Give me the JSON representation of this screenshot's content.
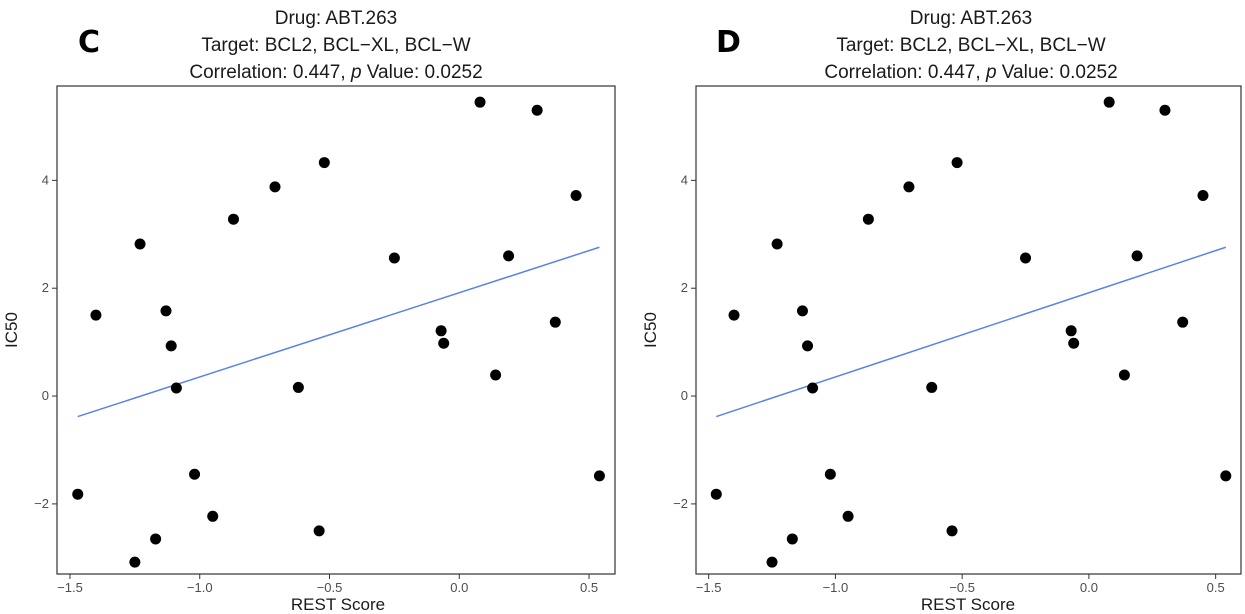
{
  "chart_data": [
    {
      "type": "scatter",
      "panel_label": "C",
      "title_lines": [
        "Drug: ABT.263",
        "Target: BCL2, BCL−XL, BCL−W"
      ],
      "correlation_line": {
        "prefix": "Correlation: 0.447, ",
        "p_symbol": "p",
        "suffix": " Value: 0.0252"
      },
      "xlabel": "REST Score",
      "ylabel": "IC50",
      "xlim": [
        -1.55,
        0.6
      ],
      "ylim": [
        -3.3,
        5.75
      ],
      "xticks": [
        -1.5,
        -1.0,
        -0.5,
        0.0,
        0.5
      ],
      "xtick_labels": [
        "−1.5",
        "−1.0",
        "−0.5",
        "0.0",
        "0.5"
      ],
      "yticks": [
        -2,
        0,
        2,
        4
      ],
      "ytick_labels": [
        "−2",
        "0",
        "2",
        "4"
      ],
      "points": [
        {
          "x": -1.47,
          "y": -1.82
        },
        {
          "x": -1.4,
          "y": 1.5
        },
        {
          "x": -1.25,
          "y": -3.08
        },
        {
          "x": -1.23,
          "y": 2.82
        },
        {
          "x": -1.17,
          "y": -2.65
        },
        {
          "x": -1.13,
          "y": 1.58
        },
        {
          "x": -1.11,
          "y": 0.93
        },
        {
          "x": -1.09,
          "y": 0.15
        },
        {
          "x": -1.02,
          "y": -1.45
        },
        {
          "x": -0.95,
          "y": -2.23
        },
        {
          "x": -0.87,
          "y": 3.28
        },
        {
          "x": -0.71,
          "y": 3.88
        },
        {
          "x": -0.62,
          "y": 0.16
        },
        {
          "x": -0.54,
          "y": -2.5
        },
        {
          "x": -0.52,
          "y": 4.33
        },
        {
          "x": -0.25,
          "y": 2.56
        },
        {
          "x": -0.07,
          "y": 1.21
        },
        {
          "x": -0.06,
          "y": 0.98
        },
        {
          "x": 0.08,
          "y": 5.45
        },
        {
          "x": 0.14,
          "y": 0.39
        },
        {
          "x": 0.19,
          "y": 2.6
        },
        {
          "x": 0.3,
          "y": 5.3
        },
        {
          "x": 0.37,
          "y": 1.37
        },
        {
          "x": 0.45,
          "y": 3.72
        },
        {
          "x": 0.54,
          "y": -1.48
        }
      ],
      "fit_line": {
        "x": [
          -1.47,
          0.54
        ],
        "y": [
          -0.38,
          2.76
        ]
      },
      "colors": {
        "points": "#000000",
        "fit_line": "#5b82e8",
        "frame": "#333333"
      }
    },
    {
      "type": "scatter",
      "panel_label": "D",
      "title_lines": [
        "Drug: ABT.263",
        "Target: BCL2, BCL−XL, BCL−W"
      ],
      "correlation_line": {
        "prefix": "Correlation: 0.447, ",
        "p_symbol": "p",
        "suffix": " Value: 0.0252"
      },
      "xlabel": "REST Score",
      "ylabel": "IC50",
      "xlim": [
        -1.55,
        0.6
      ],
      "ylim": [
        -3.3,
        5.75
      ],
      "xticks": [
        -1.5,
        -1.0,
        -0.5,
        0.0,
        0.5
      ],
      "xtick_labels": [
        "−1.5",
        "−1.0",
        "−0.5",
        "0.0",
        "0.5"
      ],
      "yticks": [
        -2,
        0,
        2,
        4
      ],
      "ytick_labels": [
        "−2",
        "0",
        "2",
        "4"
      ],
      "points": [
        {
          "x": -1.47,
          "y": -1.82
        },
        {
          "x": -1.4,
          "y": 1.5
        },
        {
          "x": -1.25,
          "y": -3.08
        },
        {
          "x": -1.23,
          "y": 2.82
        },
        {
          "x": -1.17,
          "y": -2.65
        },
        {
          "x": -1.13,
          "y": 1.58
        },
        {
          "x": -1.11,
          "y": 0.93
        },
        {
          "x": -1.09,
          "y": 0.15
        },
        {
          "x": -1.02,
          "y": -1.45
        },
        {
          "x": -0.95,
          "y": -2.23
        },
        {
          "x": -0.87,
          "y": 3.28
        },
        {
          "x": -0.71,
          "y": 3.88
        },
        {
          "x": -0.62,
          "y": 0.16
        },
        {
          "x": -0.54,
          "y": -2.5
        },
        {
          "x": -0.52,
          "y": 4.33
        },
        {
          "x": -0.25,
          "y": 2.56
        },
        {
          "x": -0.07,
          "y": 1.21
        },
        {
          "x": -0.06,
          "y": 0.98
        },
        {
          "x": 0.08,
          "y": 5.45
        },
        {
          "x": 0.14,
          "y": 0.39
        },
        {
          "x": 0.19,
          "y": 2.6
        },
        {
          "x": 0.3,
          "y": 5.3
        },
        {
          "x": 0.37,
          "y": 1.37
        },
        {
          "x": 0.45,
          "y": 3.72
        },
        {
          "x": 0.54,
          "y": -1.48
        }
      ],
      "fit_line": {
        "x": [
          -1.47,
          0.54
        ],
        "y": [
          -0.38,
          2.76
        ]
      },
      "colors": {
        "points": "#000000",
        "fit_line": "#5b82e8",
        "frame": "#333333"
      }
    }
  ]
}
